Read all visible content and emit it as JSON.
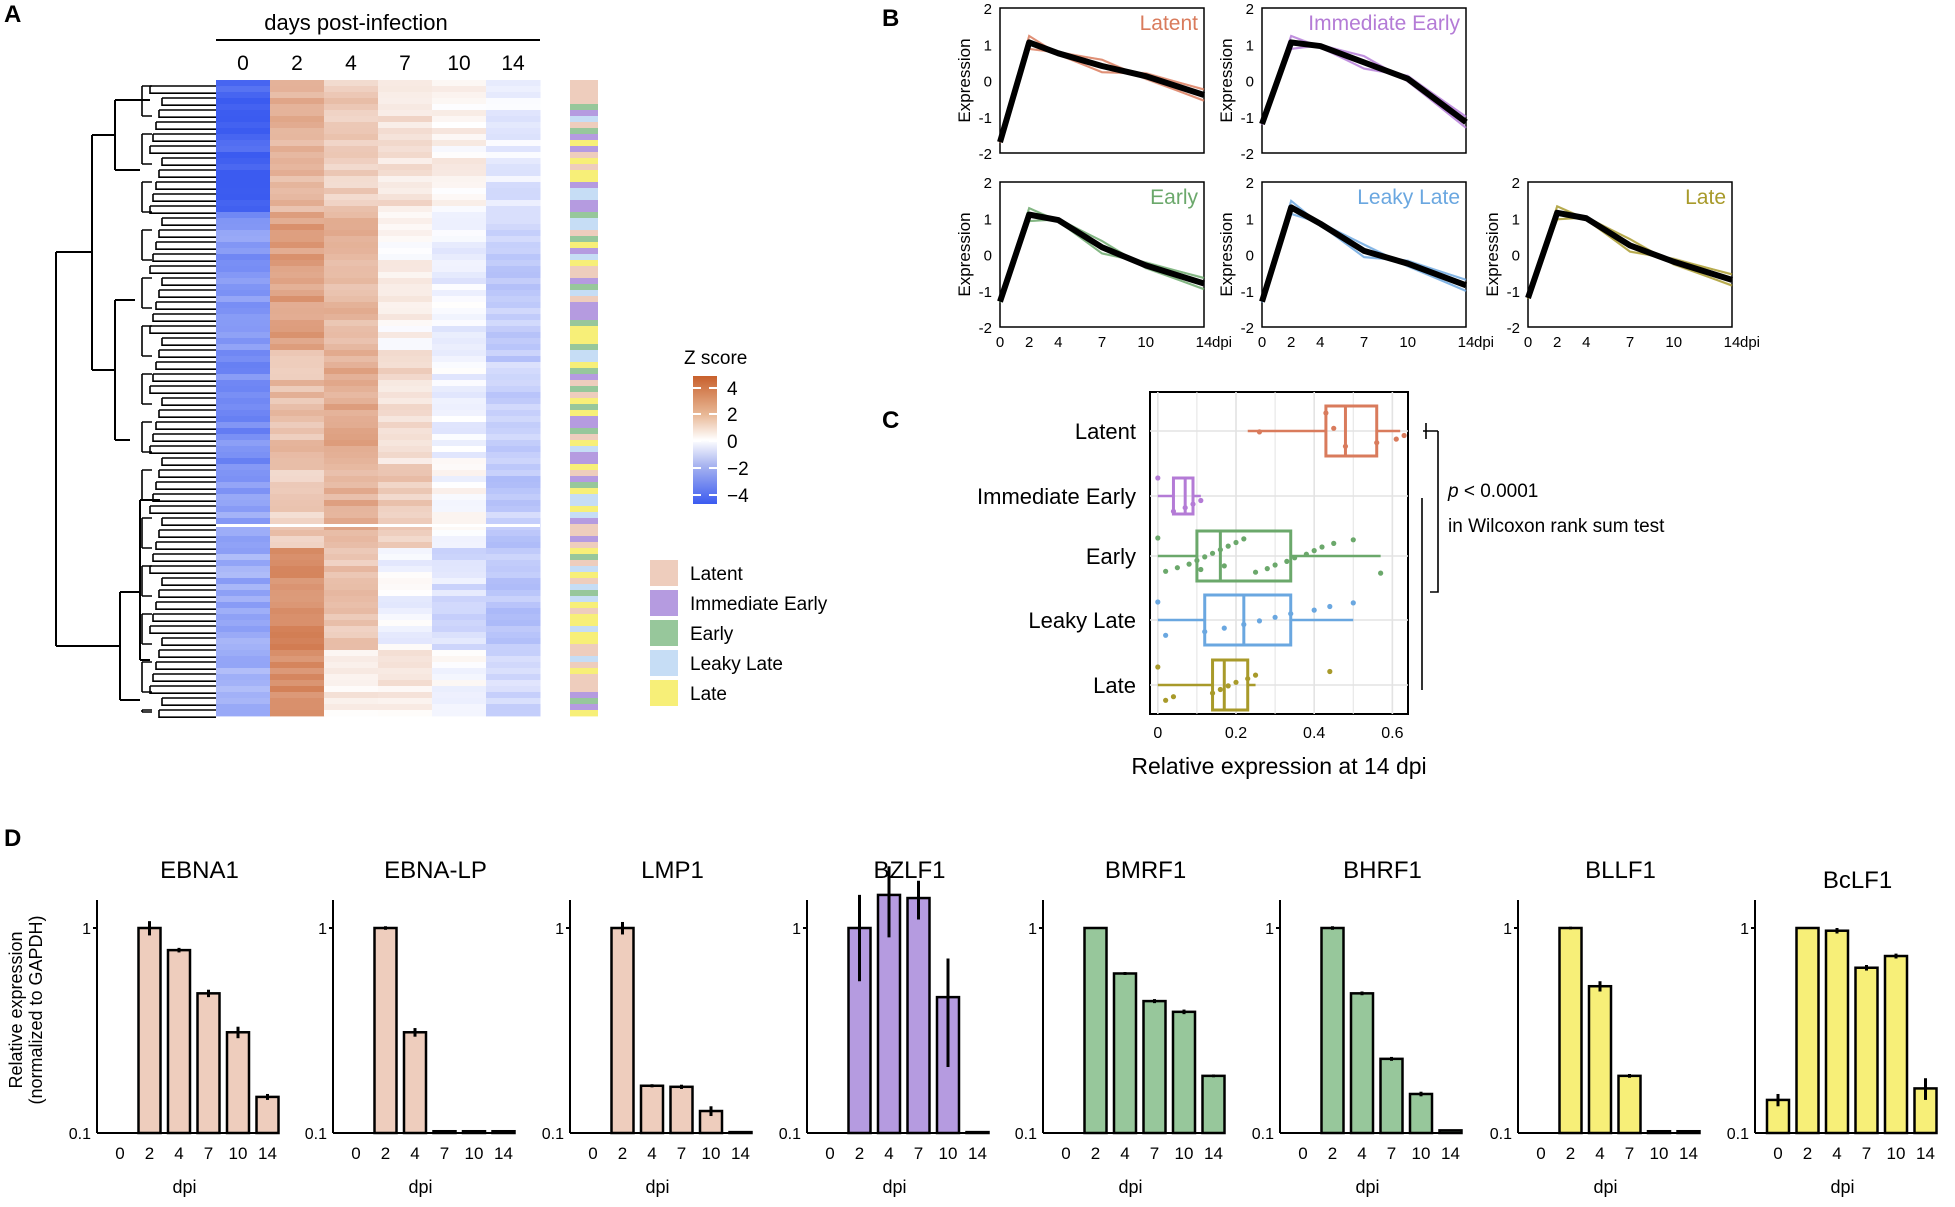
{
  "panel_letters": {
    "a": "A",
    "b": "B",
    "c": "C",
    "d": "D"
  },
  "colors": {
    "latent": "#d97b5c",
    "immediate_early": "#b47bd6",
    "early": "#6ba86b",
    "leaky_late": "#6aa7e0",
    "late": "#a89a2a",
    "latent_fill": "#eecdbd",
    "immediate_early_fill": "#b59be0",
    "early_fill": "#97c79b",
    "leaky_late_fill": "#c6ddf5",
    "late_fill": "#f7ef78",
    "z_high": "#c8602c",
    "z_low": "#3b5bf0",
    "panel_a_bar_latent": "#f0cdbd",
    "panel_b_mean": "#000000"
  },
  "panel_a": {
    "header": "days post-infection",
    "columns": [
      "0",
      "2",
      "4",
      "7",
      "10",
      "14"
    ],
    "legend_title": "Z score",
    "legend_ticks": [
      "4",
      "2",
      "0",
      "−2",
      "−4"
    ],
    "class_legend": [
      "Latent",
      "Immediate Early",
      "Early",
      "Leaky Late",
      "Late"
    ]
  },
  "chart_data": [
    {
      "type": "line",
      "panel": "B",
      "x": [
        "0",
        "2",
        "4",
        "7",
        "10",
        "14"
      ],
      "xlabel": "dpi",
      "ylabel": "Expression",
      "ylim": [
        -2,
        2
      ],
      "yticks": [
        "2",
        "1",
        "0",
        "-1",
        "-2"
      ],
      "series": [
        {
          "name": "Latent",
          "values": [
            -1.7,
            1.05,
            0.75,
            0.4,
            0.12,
            -0.4
          ]
        },
        {
          "name": "Immediate Early",
          "values": [
            -1.2,
            1.05,
            0.95,
            0.5,
            0.05,
            -1.15
          ]
        },
        {
          "name": "Early",
          "values": [
            -1.3,
            1.1,
            0.95,
            0.2,
            -0.3,
            -0.8
          ]
        },
        {
          "name": "Leaky Late",
          "values": [
            -1.3,
            1.3,
            0.85,
            0.1,
            -0.25,
            -0.85
          ]
        },
        {
          "name": "Late",
          "values": [
            -1.2,
            1.15,
            1.0,
            0.25,
            -0.2,
            -0.7
          ]
        }
      ]
    },
    {
      "type": "box",
      "panel": "C",
      "xlabel": "Relative expression at 14 dpi",
      "xlim": [
        -0.02,
        0.64
      ],
      "xticks": [
        "0",
        "0.2",
        "0.4",
        "0.6"
      ],
      "categories": [
        "Latent",
        "Immediate Early",
        "Early",
        "Leaky Late",
        "Late"
      ],
      "boxes": [
        {
          "name": "Latent",
          "min": 0.23,
          "q1": 0.43,
          "median": 0.48,
          "q3": 0.56,
          "max": 0.62,
          "points": [
            0.43,
            0.48,
            0.56,
            0.61,
            0.63,
            0.26,
            0.45
          ]
        },
        {
          "name": "Immediate Early",
          "min": 0.0,
          "q1": 0.04,
          "median": 0.07,
          "q3": 0.09,
          "max": 0.11,
          "points": [
            0.0,
            0.04,
            0.07,
            0.09,
            0.11
          ]
        },
        {
          "name": "Early",
          "min": 0.0,
          "q1": 0.1,
          "median": 0.16,
          "q3": 0.34,
          "max": 0.57,
          "points": [
            0.0,
            0.02,
            0.05,
            0.08,
            0.1,
            0.12,
            0.14,
            0.16,
            0.18,
            0.2,
            0.22,
            0.25,
            0.28,
            0.3,
            0.33,
            0.35,
            0.38,
            0.4,
            0.42,
            0.45,
            0.5,
            0.57,
            0.11,
            0.17
          ]
        },
        {
          "name": "Leaky Late",
          "min": 0.0,
          "q1": 0.12,
          "median": 0.22,
          "q3": 0.34,
          "max": 0.5,
          "points": [
            0.0,
            0.02,
            0.12,
            0.17,
            0.22,
            0.26,
            0.3,
            0.34,
            0.4,
            0.44,
            0.5
          ]
        },
        {
          "name": "Late",
          "min": 0.0,
          "q1": 0.14,
          "median": 0.17,
          "q3": 0.23,
          "max": 0.25,
          "points": [
            0.0,
            0.02,
            0.04,
            0.14,
            0.16,
            0.18,
            0.2,
            0.23,
            0.25,
            0.44
          ]
        }
      ],
      "annotation": {
        "p_label": "p",
        "p_value": "< 0.0001",
        "test": "in Wilcoxon rank sum test"
      }
    },
    {
      "type": "bar",
      "panel": "D",
      "ylabel_line1": "Relative expression",
      "ylabel_line2": "(normalized to GAPDH)",
      "xlabel": "dpi",
      "categories": [
        "0",
        "2",
        "4",
        "7",
        "10",
        "14"
      ],
      "yscale": "log",
      "ylim": [
        0.1,
        1.3
      ],
      "yticks": [
        "1",
        "0.1"
      ],
      "series": [
        {
          "name": "EBNA1",
          "class": "latent",
          "values": [
            0.1,
            1.0,
            0.78,
            0.48,
            0.31,
            0.15
          ],
          "err": [
            0,
            0.08,
            0.02,
            0.02,
            0.02,
            0.005
          ]
        },
        {
          "name": "EBNA-LP",
          "class": "latent",
          "values": [
            0.1,
            1.0,
            0.31,
            0.102,
            0.102,
            0.102
          ],
          "err": [
            0,
            0.02,
            0.015,
            0,
            0,
            0
          ]
        },
        {
          "name": "LMP1",
          "class": "latent",
          "values": [
            0.1,
            1.0,
            0.17,
            0.168,
            0.128,
            0.101
          ],
          "err": [
            0,
            0.07,
            0.003,
            0.004,
            0.007,
            0
          ]
        },
        {
          "name": "BZLF1",
          "class": "immediate_early",
          "values": [
            0.1,
            1.0,
            1.45,
            1.4,
            0.46,
            0.101
          ],
          "err": [
            0,
            0.45,
            0.55,
            0.3,
            0.25,
            0
          ]
        },
        {
          "name": "BMRF1",
          "class": "early",
          "values": [
            0.1,
            1.0,
            0.6,
            0.44,
            0.39,
            0.19
          ],
          "err": [
            0,
            0.01,
            0.01,
            0.01,
            0.01,
            0.003
          ]
        },
        {
          "name": "BHRF1",
          "class": "early",
          "values": [
            0.1,
            1.0,
            0.48,
            0.23,
            0.155,
            0.103
          ],
          "err": [
            0,
            0.02,
            0.01,
            0.005,
            0.004,
            0
          ]
        },
        {
          "name": "BLLF1",
          "class": "late",
          "values": [
            0.1,
            1.0,
            0.52,
            0.19,
            0.102,
            0.102
          ],
          "err": [
            0,
            0.015,
            0.03,
            0.004,
            0,
            0
          ]
        },
        {
          "name": "BcLF1",
          "class": "late",
          "values": [
            0.145,
            1.0,
            0.97,
            0.64,
            0.73,
            0.165
          ],
          "err": [
            0.01,
            0.01,
            0.03,
            0.02,
            0.02,
            0.02
          ]
        }
      ]
    }
  ]
}
